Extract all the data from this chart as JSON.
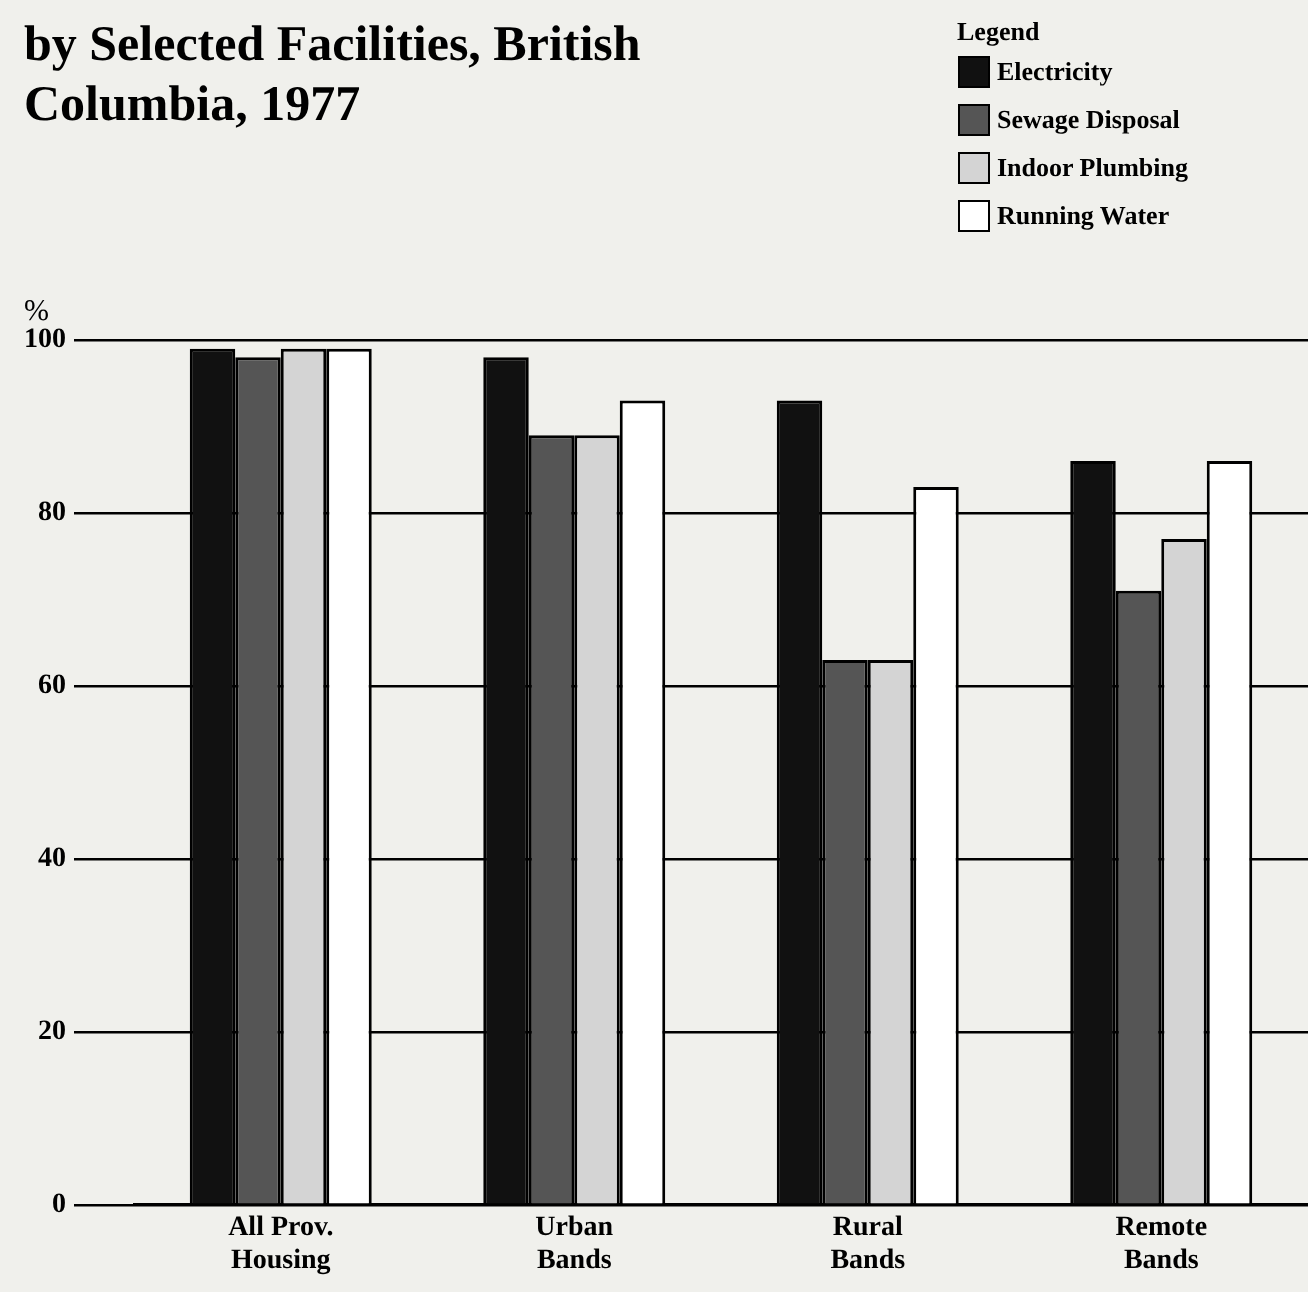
{
  "chart_data": {
    "type": "bar",
    "title": "by Selected Facilities, British Columbia, 1977",
    "ylabel": "%",
    "legend_title": "Legend",
    "categories": [
      "All Prov. Housing",
      "Urban Bands",
      "Rural Bands",
      "Remote Bands"
    ],
    "series": [
      {
        "name": "Electricity",
        "color": "#111111",
        "values": [
          99,
          98,
          93,
          86
        ]
      },
      {
        "name": "Sewage Disposal",
        "color": "#555555",
        "values": [
          98,
          89,
          63,
          71
        ]
      },
      {
        "name": "Indoor Plumbing",
        "color": "#d4d4d4",
        "values": [
          99,
          89,
          63,
          77
        ]
      },
      {
        "name": "Running Water",
        "color": "#ffffff",
        "values": [
          99,
          93,
          83,
          86
        ]
      }
    ],
    "ylim": [
      0,
      100
    ],
    "yticks": [
      0,
      20,
      40,
      60,
      80,
      100
    ],
    "grid": "y",
    "legend": "top right"
  }
}
